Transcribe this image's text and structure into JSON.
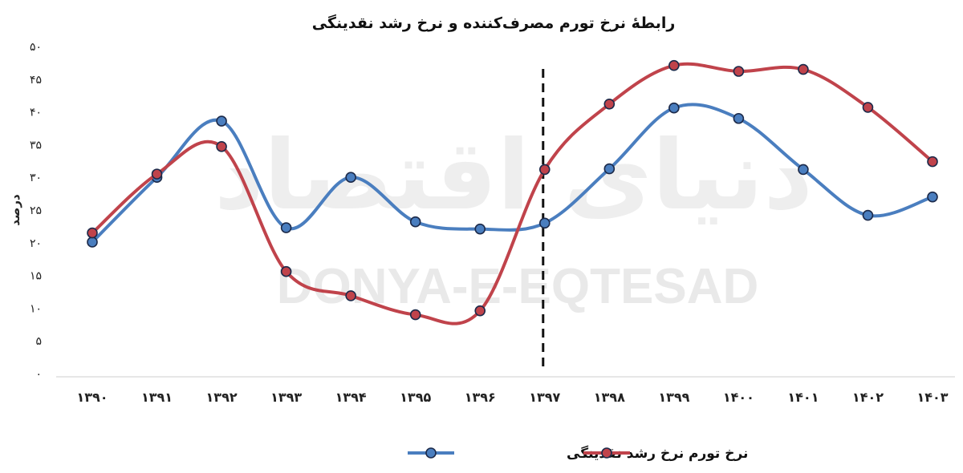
{
  "watermark": {
    "fa": "دنیای اقتصاد",
    "latin": "DONYA-E-EQTESAD"
  },
  "chart_data": {
    "type": "line",
    "title": "رابطهٔ نرخ تورم مصرف‌کننده و نرخ رشد نقدینگی",
    "xlabel": "",
    "ylabel": "درصد",
    "categories": [
      "۱۳۹۰",
      "۱۳۹۱",
      "۱۳۹۲",
      "۱۳۹۳",
      "۱۳۹۴",
      "۱۳۹۵",
      "۱۳۹۶",
      "۱۳۹۷",
      "۱۳۹۸",
      "۱۳۹۹",
      "۱۴۰۰",
      "۱۴۰۱",
      "۱۴۰۲",
      "۱۴۰۳"
    ],
    "ylim": [
      0,
      50
    ],
    "yticks": [
      0,
      5,
      10,
      15,
      20,
      25,
      30,
      35,
      40,
      45,
      50
    ],
    "ytick_labels": [
      "۰",
      "۵",
      "۱۰",
      "۱۵",
      "۲۰",
      "۲۵",
      "۳۰",
      "۳۵",
      "۴۰",
      "۴۵",
      "۵۰"
    ],
    "grid": false,
    "legend_position": "bottom-center",
    "marker_year_index": 7,
    "series": [
      {
        "name": "نرخ رشد نقدینگی",
        "color": "#4a7ebf",
        "values": [
          20.1,
          30.0,
          38.6,
          22.3,
          30.0,
          23.2,
          22.1,
          23.0,
          31.3,
          40.6,
          39.0,
          31.2,
          24.2,
          27.0
        ]
      },
      {
        "name": "نرخ تورم",
        "color": "#c0434b",
        "values": [
          21.5,
          30.5,
          34.7,
          15.6,
          11.9,
          9.0,
          9.6,
          31.2,
          41.2,
          47.1,
          46.2,
          46.5,
          40.7,
          32.4
        ]
      }
    ]
  }
}
